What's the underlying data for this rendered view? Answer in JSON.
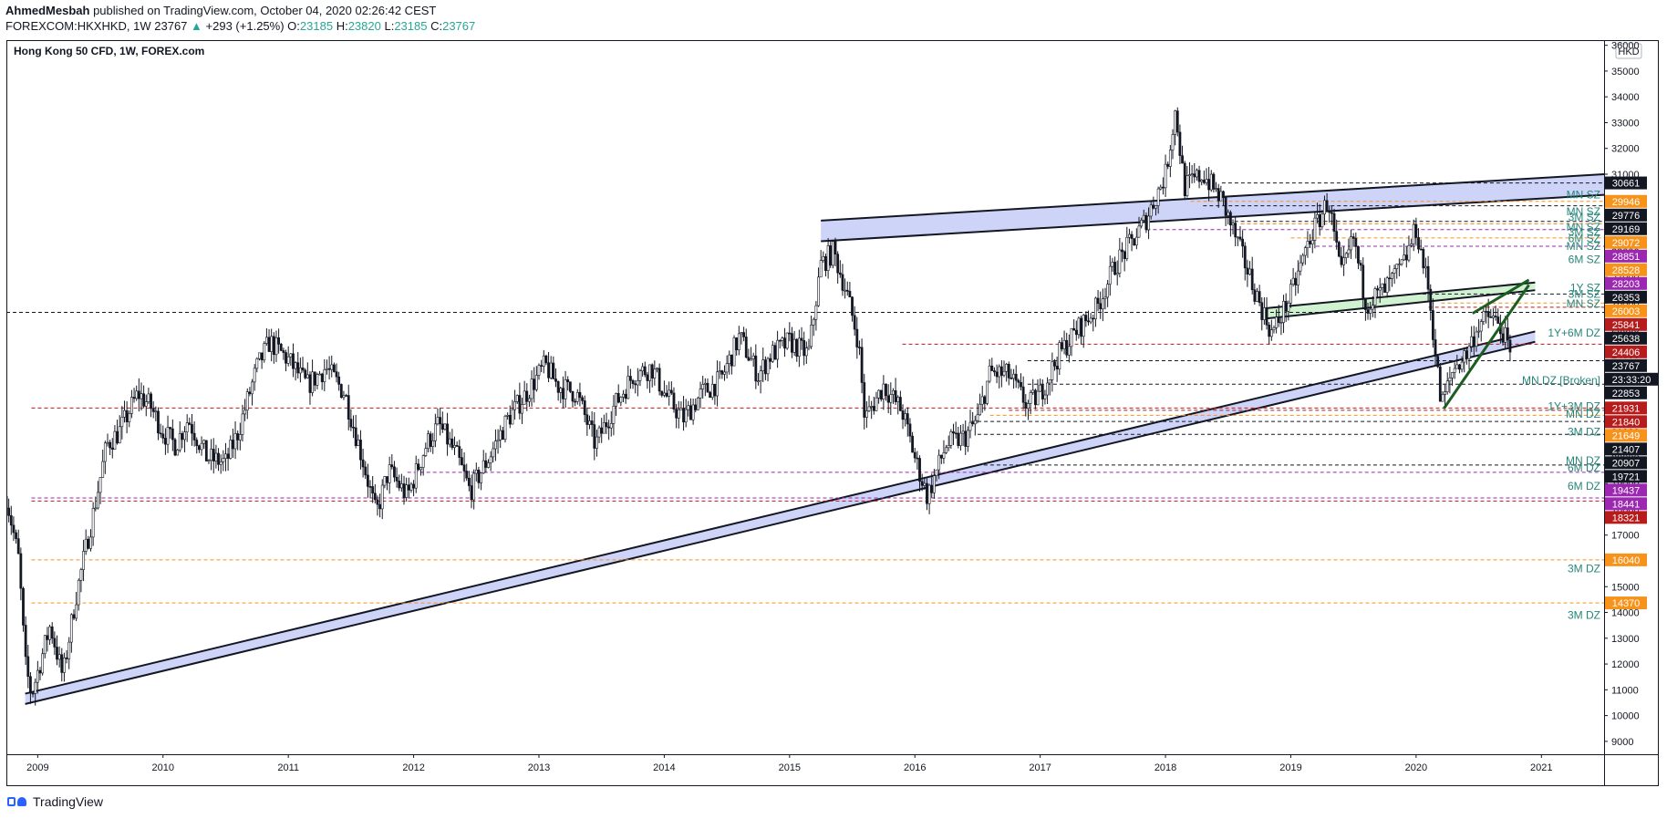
{
  "header": {
    "author": "AhmedMesbah",
    "published_text": " published on TradingView.com, October 04, 2020 02:26:42 CEST",
    "symbol": "FOREXCOM:HKXHKD, 1W",
    "last": "23767",
    "change": "+293 (+1.25%)",
    "o_label": "O:",
    "o": "23185",
    "h_label": "H:",
    "h": "23820",
    "l_label": "L:",
    "l": "23185",
    "c_label": "C:",
    "c": "23767"
  },
  "brand": "TradingView",
  "chart_data": {
    "type": "candlestick",
    "title": "Hong Kong 50 CFD, 1W, FOREX.com",
    "currency": "HKD",
    "ylim": [
      8500,
      36200
    ],
    "xlim": [
      2008.75,
      2021.5
    ],
    "y_ticks": [
      9000,
      10000,
      11000,
      12000,
      13000,
      14000,
      15000,
      16000,
      17000,
      18000,
      19000,
      20000,
      21000,
      22000,
      23000,
      24000,
      25000,
      26000,
      27000,
      28000,
      29000,
      30000,
      31000,
      32000,
      33000,
      34000,
      35000,
      36000
    ],
    "x_ticks": [
      {
        "label": "2009",
        "x": 2009.0
      },
      {
        "label": "2010",
        "x": 2010.0
      },
      {
        "label": "2011",
        "x": 2011.0
      },
      {
        "label": "2012",
        "x": 2012.0
      },
      {
        "label": "2013",
        "x": 2013.0
      },
      {
        "label": "2014",
        "x": 2014.0
      },
      {
        "label": "2015",
        "x": 2015.0
      },
      {
        "label": "2016",
        "x": 2016.0
      },
      {
        "label": "2017",
        "x": 2017.0
      },
      {
        "label": "2018",
        "x": 2018.0
      },
      {
        "label": "2019",
        "x": 2019.0
      },
      {
        "label": "2020",
        "x": 2020.0
      },
      {
        "label": "2021",
        "x": 2021.0
      }
    ],
    "price_path": [
      [
        2008.75,
        18500
      ],
      [
        2008.85,
        16000
      ],
      [
        2008.9,
        12000
      ],
      [
        2008.95,
        10800
      ],
      [
        2009.1,
        13500
      ],
      [
        2009.2,
        11500
      ],
      [
        2009.3,
        14500
      ],
      [
        2009.45,
        18000
      ],
      [
        2009.55,
        20500
      ],
      [
        2009.65,
        21000
      ],
      [
        2009.8,
        22500
      ],
      [
        2009.9,
        22000
      ],
      [
        2010.0,
        21000
      ],
      [
        2010.1,
        20500
      ],
      [
        2010.2,
        21500
      ],
      [
        2010.35,
        20000
      ],
      [
        2010.5,
        19800
      ],
      [
        2010.6,
        21000
      ],
      [
        2010.75,
        23500
      ],
      [
        2010.85,
        24500
      ],
      [
        2011.0,
        23800
      ],
      [
        2011.15,
        22800
      ],
      [
        2011.3,
        23500
      ],
      [
        2011.45,
        22500
      ],
      [
        2011.6,
        19800
      ],
      [
        2011.7,
        17800
      ],
      [
        2011.8,
        19500
      ],
      [
        2011.95,
        18500
      ],
      [
        2012.1,
        20500
      ],
      [
        2012.2,
        21300
      ],
      [
        2012.35,
        20000
      ],
      [
        2012.45,
        18700
      ],
      [
        2012.6,
        20000
      ],
      [
        2012.75,
        21500
      ],
      [
        2012.9,
        22500
      ],
      [
        2013.05,
        23600
      ],
      [
        2013.15,
        22800
      ],
      [
        2013.3,
        22500
      ],
      [
        2013.45,
        20500
      ],
      [
        2013.6,
        22000
      ],
      [
        2013.75,
        23200
      ],
      [
        2013.9,
        23500
      ],
      [
        2014.0,
        22500
      ],
      [
        2014.15,
        21500
      ],
      [
        2014.3,
        22500
      ],
      [
        2014.45,
        23000
      ],
      [
        2014.6,
        24700
      ],
      [
        2014.75,
        23200
      ],
      [
        2014.85,
        24000
      ],
      [
        2015.0,
        24500
      ],
      [
        2015.15,
        24000
      ],
      [
        2015.25,
        27500
      ],
      [
        2015.35,
        28000
      ],
      [
        2015.45,
        26500
      ],
      [
        2015.55,
        24500
      ],
      [
        2015.6,
        21500
      ],
      [
        2015.75,
        22800
      ],
      [
        2015.9,
        21800
      ],
      [
        2016.0,
        20000
      ],
      [
        2016.1,
        18500
      ],
      [
        2016.25,
        20500
      ],
      [
        2016.4,
        20800
      ],
      [
        2016.5,
        21500
      ],
      [
        2016.6,
        23300
      ],
      [
        2016.75,
        23200
      ],
      [
        2016.9,
        22000
      ],
      [
        2017.0,
        22500
      ],
      [
        2017.15,
        24000
      ],
      [
        2017.3,
        25000
      ],
      [
        2017.45,
        25800
      ],
      [
        2017.6,
        27500
      ],
      [
        2017.75,
        28500
      ],
      [
        2017.85,
        29300
      ],
      [
        2018.0,
        31000
      ],
      [
        2018.08,
        33500
      ],
      [
        2018.15,
        30500
      ],
      [
        2018.3,
        31000
      ],
      [
        2018.45,
        30000
      ],
      [
        2018.6,
        28000
      ],
      [
        2018.75,
        26000
      ],
      [
        2018.85,
        24800
      ],
      [
        2019.0,
        26300
      ],
      [
        2019.15,
        28500
      ],
      [
        2019.3,
        30000
      ],
      [
        2019.4,
        27000
      ],
      [
        2019.5,
        28500
      ],
      [
        2019.6,
        26000
      ],
      [
        2019.75,
        26500
      ],
      [
        2019.9,
        27500
      ],
      [
        2020.0,
        28900
      ],
      [
        2020.1,
        26500
      ],
      [
        2020.2,
        22000
      ],
      [
        2020.3,
        23500
      ],
      [
        2020.4,
        24000
      ],
      [
        2020.5,
        25200
      ],
      [
        2020.6,
        25500
      ],
      [
        2020.7,
        24800
      ],
      [
        2020.76,
        23767
      ]
    ],
    "channels": [
      {
        "fill": "#c5cbf7",
        "stroke": "#131722",
        "lower": [
          [
            2008.9,
            10450
          ],
          [
            2020.95,
            24500
          ]
        ],
        "upper": [
          [
            2008.9,
            10850
          ],
          [
            2020.95,
            24900
          ]
        ]
      },
      {
        "fill": "#c5cbf7",
        "stroke": "#131722",
        "lower": [
          [
            2015.25,
            28400
          ],
          [
            2021.5,
            30200
          ]
        ],
        "upper": [
          [
            2015.25,
            29200
          ],
          [
            2021.5,
            31000
          ]
        ]
      },
      {
        "fill": "#c8f0c8",
        "stroke": "#131722",
        "lower": [
          [
            2018.8,
            25400
          ],
          [
            2020.95,
            26500
          ]
        ],
        "upper": [
          [
            2018.8,
            25800
          ],
          [
            2020.95,
            26800
          ]
        ]
      }
    ],
    "wedge": [
      [
        [
          2020.22,
          21900
        ],
        [
          2020.9,
          26700
        ]
      ],
      [
        [
          2020.45,
          25600
        ],
        [
          2020.9,
          26900
        ]
      ]
    ],
    "levels": [
      {
        "price": 30661,
        "color": "#131722",
        "label": "30661",
        "from": 2018.45
      },
      {
        "price": 29946,
        "color": "#f7931a",
        "label": "29946",
        "from": 2018.2
      },
      {
        "price": 29776,
        "color": "#131722",
        "label": "29776",
        "from": 2018.3
      },
      {
        "price": 29169,
        "color": "#131722",
        "label": "29169",
        "from": 2018.55
      },
      {
        "price": 29072,
        "color": "#f7931a",
        "label": "29072",
        "from": 2018.6
      },
      {
        "price": 28851,
        "color": "#9c27b0",
        "label": "28851",
        "from": 2017.85
      },
      {
        "price": 28528,
        "color": "#f7931a",
        "label": "28528",
        "from": 2019.0
      },
      {
        "price": 28203,
        "color": "#9c27b0",
        "label": "28203",
        "from": 2019.2
      },
      {
        "price": 26353,
        "color": "#131722",
        "label": "26353",
        "from": 2020.0
      },
      {
        "price": 26003,
        "color": "#f7931a",
        "label": "26003",
        "from": 2020.2
      },
      {
        "price": 25841,
        "color": "#b71c1c",
        "label": "25841",
        "from": 2020.1
      },
      {
        "price": 25638,
        "color": "#131722",
        "label": "25638",
        "from": 2008.75
      },
      {
        "price": 24406,
        "color": "#b71c1c",
        "label": "24406",
        "from": 2015.9
      },
      {
        "price": 23767,
        "color": "#131722",
        "label": "23767",
        "from": 2016.9
      },
      {
        "price": 22853,
        "color": "#131722",
        "label": "22853",
        "from": 2016.9
      },
      {
        "price": 21931,
        "color": "#b71c1c",
        "label": "21931",
        "from": 2008.95
      },
      {
        "price": 21840,
        "color": "#b71c1c",
        "label": "21840",
        "from": 2016.75
      },
      {
        "price": 21649,
        "color": "#f7931a",
        "label": "21649",
        "from": 2016.6
      },
      {
        "price": 21407,
        "color": "#131722",
        "label": "21407",
        "from": 2016.45
      },
      {
        "price": 20907,
        "color": "#131722",
        "label": "20907",
        "from": 2016.5
      },
      {
        "price": 19721,
        "color": "#131722",
        "label": "19721",
        "from": 2016.5
      },
      {
        "price": 19437,
        "color": "#9c27b0",
        "label": "19437",
        "from": 2011.95
      },
      {
        "price": 18441,
        "color": "#9c27b0",
        "label": "18441",
        "from": 2008.95
      },
      {
        "price": 18321,
        "color": "#b71c1c",
        "label": "18321",
        "from": 2008.95
      },
      {
        "price": 16040,
        "color": "#f7931a",
        "label": "16040",
        "from": 2008.95
      },
      {
        "price": 14370,
        "color": "#f7931a",
        "label": "14370",
        "from": 2008.95
      }
    ],
    "countdown": "23:33:20",
    "zone_labels": [
      {
        "text": "MN SZ",
        "price": 30200
      },
      {
        "text": "MN SZ",
        "price": 29550
      },
      {
        "text": "3M SZ",
        "price": 29330
      },
      {
        "text": "MN SZ",
        "price": 28950
      },
      {
        "text": "3M SZ",
        "price": 28750
      },
      {
        "text": "6M SZ",
        "price": 28500
      },
      {
        "text": "MN SZ",
        "price": 28200
      },
      {
        "text": "6M SZ",
        "price": 27700
      },
      {
        "text": "1Y SZ",
        "price": 26600
      },
      {
        "text": "3M SZ",
        "price": 26350
      },
      {
        "text": "MN SZ",
        "price": 25980
      },
      {
        "text": "1Y+6M DZ",
        "price": 24850
      },
      {
        "text": "MN DZ [Broken]",
        "price": 23000
      },
      {
        "text": "1Y+3M DZ",
        "price": 22000
      },
      {
        "text": "MN DZ",
        "price": 21700
      },
      {
        "text": "3M DZ",
        "price": 21000
      },
      {
        "text": "MN DZ",
        "price": 19900
      },
      {
        "text": "6M DZ",
        "price": 19600
      },
      {
        "text": "6M DZ",
        "price": 18900
      },
      {
        "text": "3M DZ",
        "price": 15700
      },
      {
        "text": "3M DZ",
        "price": 13900
      }
    ]
  }
}
